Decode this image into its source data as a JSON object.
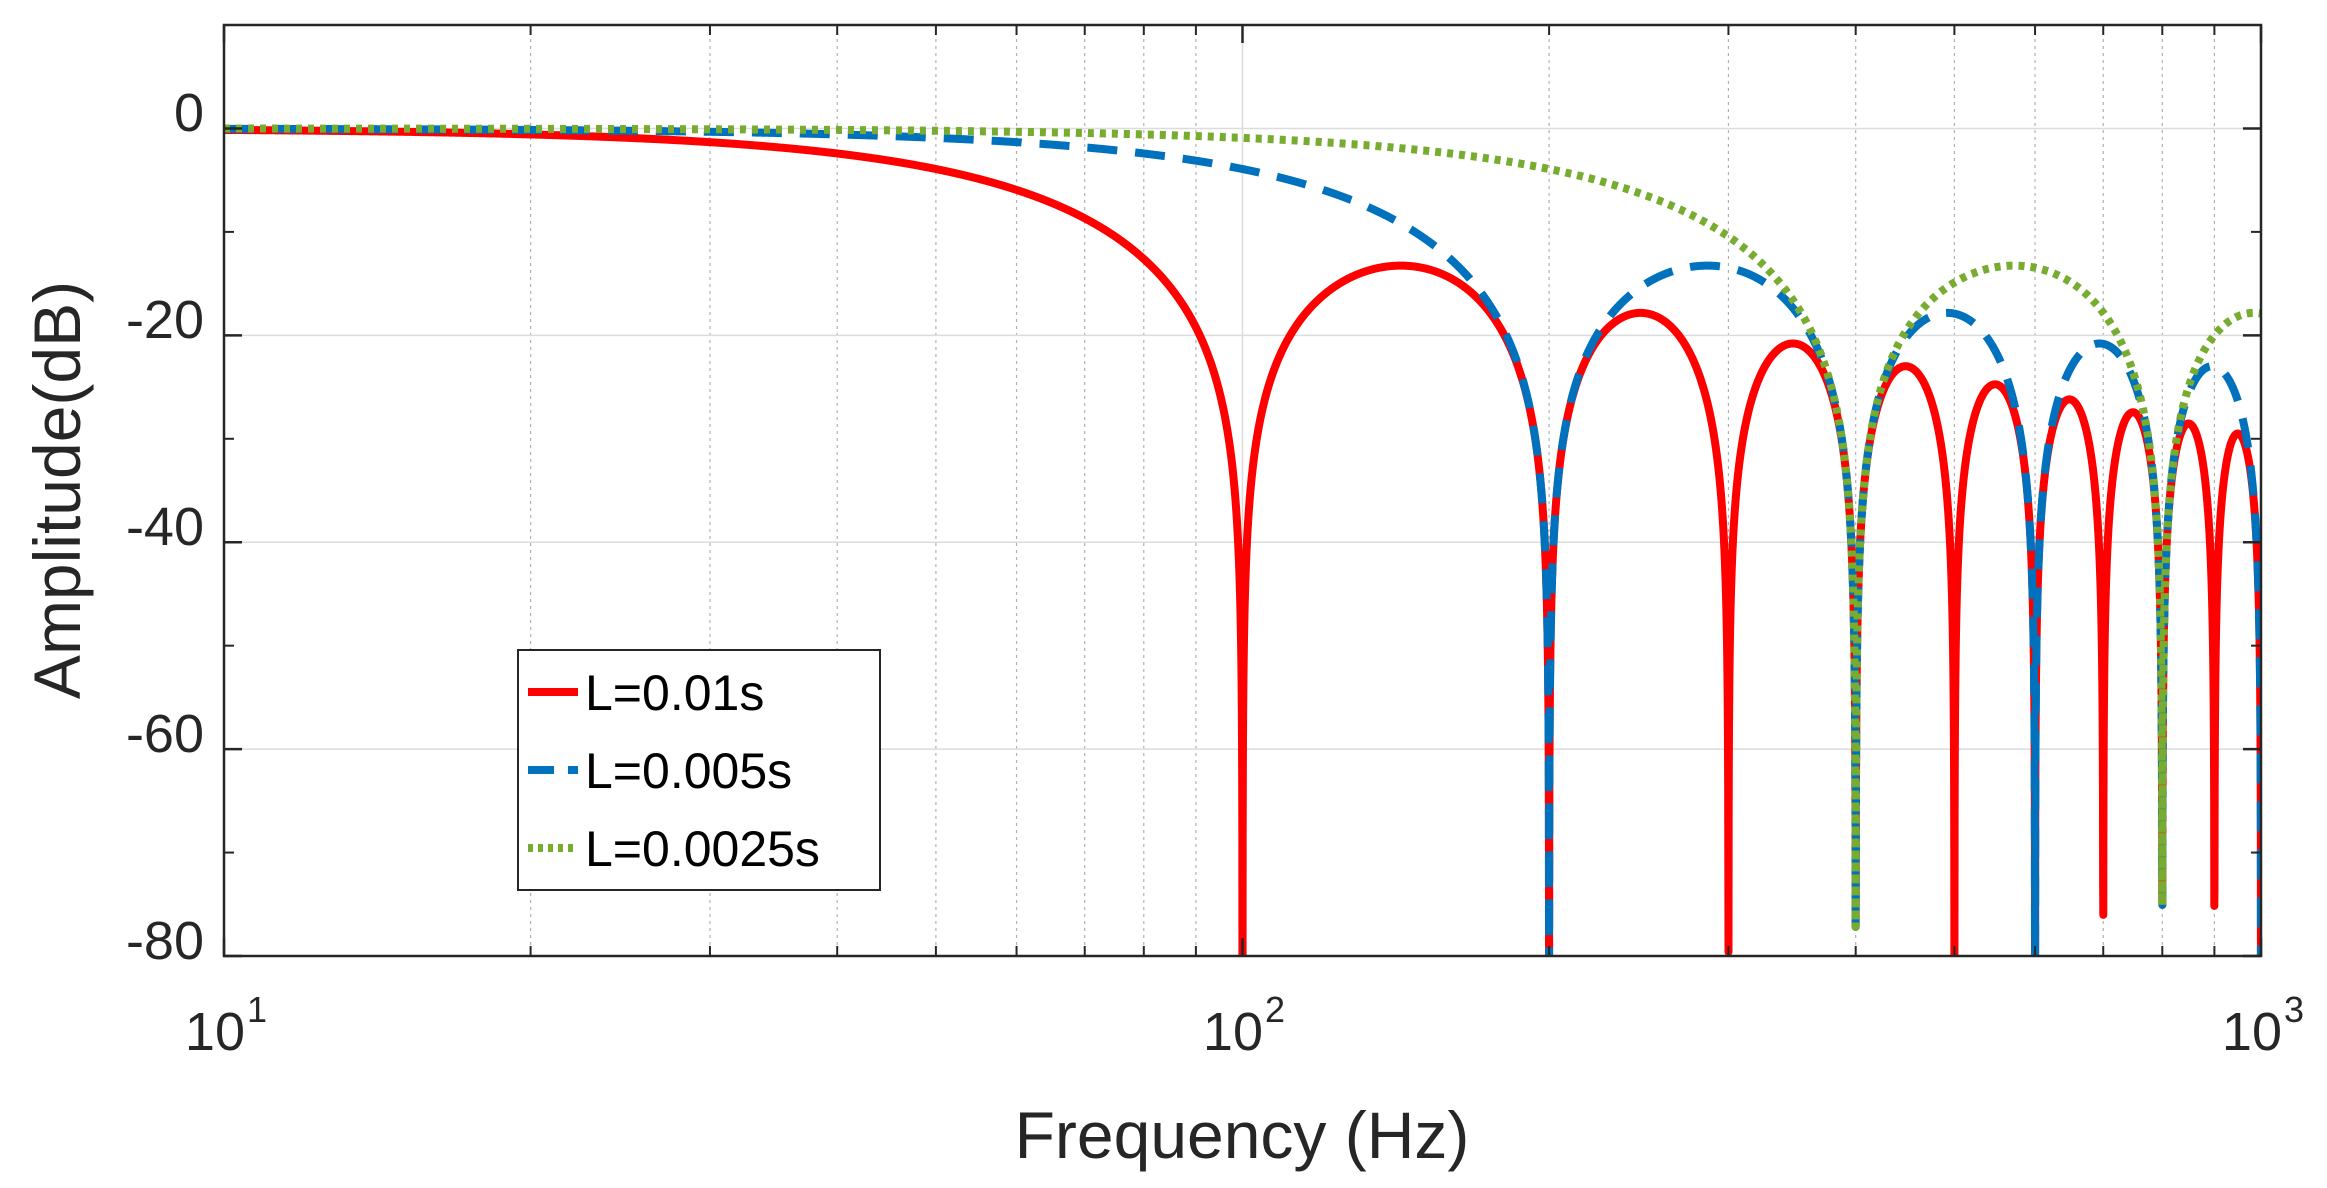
{
  "chart_data": {
    "type": "line",
    "title": "",
    "xlabel": "Frequency (Hz)",
    "ylabel": "Amplitude(dB)",
    "xscale": "log",
    "xlim": [
      10,
      1000
    ],
    "ylim": [
      -80,
      10
    ],
    "xticks": [
      10,
      100,
      1000
    ],
    "xtick_labels": [
      {
        "base": "10",
        "exp": "1"
      },
      {
        "base": "10",
        "exp": "2"
      },
      {
        "base": "10",
        "exp": "3"
      }
    ],
    "yticks": [
      0,
      -20,
      -40,
      -60,
      -80
    ],
    "ytick_labels": [
      "0",
      "-20",
      "-40",
      "-60",
      "-80"
    ],
    "grid": true,
    "legend_position": "lower-left",
    "series": [
      {
        "name": "L=0.01s",
        "L": 0.01,
        "color": "#ff0000",
        "style": "solid"
      },
      {
        "name": "L=0.005s",
        "L": 0.005,
        "color": "#0072bd",
        "style": "dashed"
      },
      {
        "name": "L=0.0025s",
        "L": 0.0025,
        "color": "#77ac30",
        "style": "dotted"
      }
    ]
  }
}
